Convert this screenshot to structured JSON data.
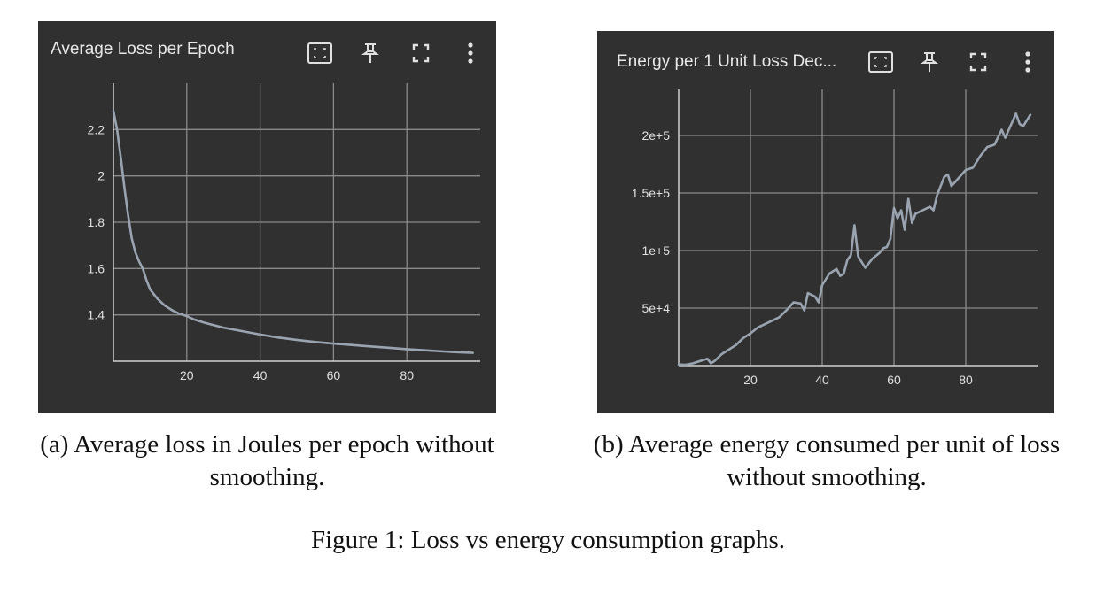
{
  "panels": [
    {
      "title": "Average Loss per Epoch",
      "icons": [
        "fit-domain-icon",
        "pin-icon",
        "fullscreen-icon",
        "more-vert-icon"
      ]
    },
    {
      "title": "Energy per 1 Unit Loss Dec...",
      "icons": [
        "fit-domain-icon",
        "pin-icon",
        "fullscreen-icon",
        "more-vert-icon"
      ]
    }
  ],
  "captions": {
    "a": "(a) Average loss in Joules per epoch without smoothing.",
    "b": "(b) Average energy consumed per unit of loss without smoothing.",
    "figure": "Figure 1: Loss vs energy consumption graphs."
  },
  "colors": {
    "panel_bg": "#303030",
    "grid": "#8a8a8a",
    "line": "#9aa4b0",
    "text": "#e0e0e0"
  },
  "chart_data": [
    {
      "type": "line",
      "title": "Average Loss per Epoch",
      "xlabel": "",
      "ylabel": "",
      "xlim": [
        0,
        100
      ],
      "ylim": [
        1.2,
        2.4
      ],
      "xticks": [
        20,
        40,
        60,
        80
      ],
      "xtick_labels": [
        "20",
        "40",
        "60",
        "80"
      ],
      "yticks": [
        1.4,
        1.6,
        1.8,
        2,
        2.2
      ],
      "ytick_labels": [
        "1.4",
        "1.6",
        "1.8",
        "2",
        "2.2"
      ],
      "grid": true,
      "series": [
        {
          "x": [
            0,
            1,
            2,
            3,
            4,
            5,
            6,
            7,
            8,
            9,
            10,
            12,
            14,
            16,
            18,
            20,
            22,
            25,
            30,
            35,
            40,
            45,
            50,
            55,
            60,
            65,
            70,
            75,
            80,
            85,
            90,
            95,
            98
          ],
          "values": [
            2.28,
            2.2,
            2.08,
            1.95,
            1.83,
            1.73,
            1.67,
            1.63,
            1.6,
            1.55,
            1.51,
            1.47,
            1.44,
            1.42,
            1.405,
            1.395,
            1.38,
            1.365,
            1.345,
            1.33,
            1.315,
            1.302,
            1.292,
            1.283,
            1.276,
            1.27,
            1.264,
            1.258,
            1.252,
            1.247,
            1.242,
            1.238,
            1.236
          ]
        }
      ]
    },
    {
      "type": "line",
      "title": "Energy per 1 Unit Loss Dec...",
      "xlabel": "",
      "ylabel": "",
      "xlim": [
        0,
        100
      ],
      "ylim": [
        0,
        240000
      ],
      "xticks": [
        20,
        40,
        60,
        80
      ],
      "xtick_labels": [
        "20",
        "40",
        "60",
        "80"
      ],
      "yticks": [
        50000,
        100000,
        150000,
        200000
      ],
      "ytick_labels": [
        "5e+4",
        "1e+5",
        "1.5e+5",
        "2e+5"
      ],
      "grid": true,
      "series": [
        {
          "x": [
            0,
            2,
            4,
            6,
            8,
            9,
            10,
            12,
            14,
            16,
            18,
            20,
            22,
            24,
            26,
            28,
            30,
            32,
            34,
            35,
            36,
            38,
            39,
            40,
            42,
            44,
            45,
            46,
            47,
            48,
            49,
            50,
            52,
            54,
            56,
            57,
            58,
            59,
            60,
            61,
            62,
            63,
            64,
            65,
            66,
            68,
            70,
            71,
            72,
            74,
            75,
            76,
            78,
            80,
            82,
            84,
            86,
            88,
            90,
            91,
            92,
            94,
            95,
            96,
            98
          ],
          "values": [
            1000,
            800,
            2000,
            4000,
            6000,
            2000,
            4000,
            10000,
            14000,
            18000,
            24000,
            28000,
            33000,
            36000,
            39000,
            42000,
            48000,
            55000,
            54000,
            48000,
            63000,
            60000,
            55000,
            70000,
            80000,
            84000,
            78000,
            80000,
            92000,
            96000,
            122000,
            95000,
            85000,
            93000,
            98000,
            102000,
            103000,
            110000,
            137000,
            128000,
            135000,
            118000,
            145000,
            124000,
            132000,
            135000,
            138000,
            135000,
            148000,
            164000,
            166000,
            156000,
            163000,
            170000,
            172000,
            182000,
            190000,
            192000,
            205000,
            198000,
            205000,
            219000,
            210000,
            208000,
            218000
          ]
        }
      ]
    }
  ]
}
